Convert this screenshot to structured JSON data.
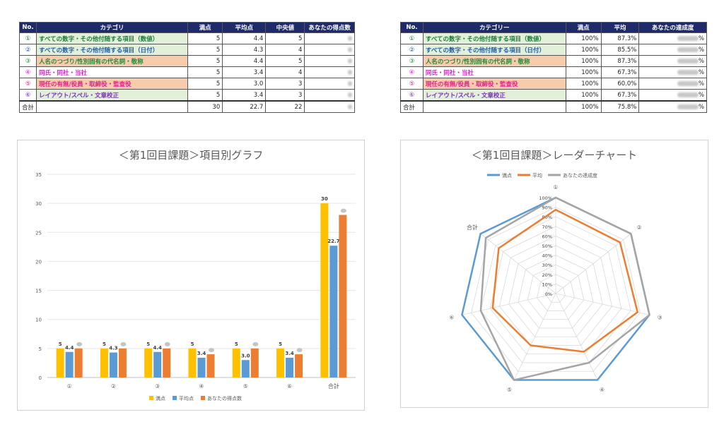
{
  "table1": {
    "headers": [
      "No.",
      "カテゴリ",
      "満点",
      "平均点",
      "中央値",
      "あなたの得点数"
    ],
    "rows": [
      {
        "no": "①",
        "cat": "すべての数字・その他付随する項目（数値）",
        "full": "5",
        "avg": "4.4",
        "median": "5",
        "cat_color": "#1a7d3a",
        "bg": "#e2efd9"
      },
      {
        "no": "②",
        "cat": "すべての数字・その他付随する項目（日付）",
        "full": "5",
        "avg": "4.3",
        "median": "4",
        "cat_color": "#1f5fa8",
        "bg": "#e2efd9"
      },
      {
        "no": "③",
        "cat": "人名のつづり/性別固有の代名詞・敬称",
        "full": "5",
        "avg": "4.4",
        "median": "5",
        "cat_color": "#1a8d3a",
        "bg": "#f8cbad"
      },
      {
        "no": "④",
        "cat": "同氏・同社・当社",
        "full": "5",
        "avg": "3.4",
        "median": "4",
        "cat_color": "#d61ec8",
        "bg": "#ffffff"
      },
      {
        "no": "⑤",
        "cat": "現任の有無/役員・取締役・監査役",
        "full": "5",
        "avg": "3.0",
        "median": "3",
        "cat_color": "#e0218a",
        "bg": "#f8cbad"
      },
      {
        "no": "⑥",
        "cat": "レイアウト/スペル・文章校正",
        "full": "5",
        "avg": "3.4",
        "median": "3",
        "cat_color": "#7b2fbf",
        "bg": "#e2efd9"
      }
    ],
    "total": {
      "label": "合計",
      "full": "30",
      "avg": "22.7",
      "median": "22"
    }
  },
  "table2": {
    "headers": [
      "No.",
      "カテゴリー",
      "満点",
      "平均",
      "あなたの達成度"
    ],
    "rows": [
      {
        "no": "①",
        "cat": "すべての数字・その他付随する項目（数値）",
        "full": "100%",
        "avg": "87.3%",
        "cat_color": "#1a7d3a",
        "bg": "#e2efd9"
      },
      {
        "no": "②",
        "cat": "すべての数字・その他付随する項目（日付）",
        "full": "100%",
        "avg": "85.5%",
        "cat_color": "#1f5fa8",
        "bg": "#e2efd9"
      },
      {
        "no": "③",
        "cat": "人名のつづり/性別固有の代名詞・敬称",
        "full": "100%",
        "avg": "87.3%",
        "cat_color": "#1a8d3a",
        "bg": "#f8cbad"
      },
      {
        "no": "④",
        "cat": "同氏・同社・当社",
        "full": "100%",
        "avg": "67.3%",
        "cat_color": "#d61ec8",
        "bg": "#ffffff"
      },
      {
        "no": "⑤",
        "cat": "現任の有無/役員・取締役・監査役",
        "full": "100%",
        "avg": "60.0%",
        "cat_color": "#e0218a",
        "bg": "#f8cbad"
      },
      {
        "no": "⑥",
        "cat": "レイアウト/スペル・文章校正",
        "full": "100%",
        "avg": "67.3%",
        "cat_color": "#7b2fbf",
        "bg": "#e2efd9"
      }
    ],
    "total": {
      "label": "合計",
      "full": "100%",
      "avg": "75.8%"
    },
    "pct_suffix": "%"
  },
  "chart_data": [
    {
      "type": "bar",
      "title": "＜第1回目課題＞項目別グラフ",
      "categories": [
        "①",
        "②",
        "③",
        "④",
        "⑤",
        "⑥",
        "合計"
      ],
      "series": [
        {
          "name": "満点",
          "color": "#ffc000",
          "values": [
            5,
            5,
            5,
            5,
            5,
            5,
            30
          ],
          "labels": [
            "5",
            "5",
            "5",
            "5",
            "5",
            "5",
            "30"
          ]
        },
        {
          "name": "平均点",
          "color": "#5b9bd5",
          "values": [
            4.4,
            4.3,
            4.4,
            3.4,
            3.0,
            3.4,
            22.7
          ],
          "labels": [
            "4.4",
            "4.3",
            "4.4",
            "3.4",
            "3.0",
            "3.4",
            "22.7"
          ]
        },
        {
          "name": "あなたの得点数",
          "color": "#ed7d31",
          "values": [
            5,
            5,
            5,
            4,
            5,
            4,
            28
          ]
        }
      ],
      "ylim": [
        0,
        35
      ],
      "yticks": [
        0,
        5,
        10,
        15,
        20,
        25,
        30,
        35
      ],
      "grid": true,
      "legend": "bottom"
    },
    {
      "type": "radar",
      "title": "＜第1回目課題＞レーダーチャート",
      "categories": [
        "①",
        "②",
        "③",
        "④",
        "⑤",
        "⑥",
        "合計"
      ],
      "series": [
        {
          "name": "満点",
          "color": "#5b9bd5",
          "values": [
            100,
            100,
            100,
            100,
            100,
            100,
            100
          ]
        },
        {
          "name": "平均",
          "color": "#ed7d31",
          "values": [
            87.3,
            85.5,
            87.3,
            67.3,
            60.0,
            67.3,
            75.8
          ]
        },
        {
          "name": "あなたの達成度",
          "color": "#a5a5a5",
          "values": [
            100,
            100,
            100,
            80,
            100,
            80,
            93
          ]
        }
      ],
      "rlim": [
        0,
        100
      ],
      "rticks": [
        "0%",
        "10%",
        "20%",
        "30%",
        "40%",
        "50%",
        "60%",
        "70%",
        "80%",
        "90%",
        "100%"
      ],
      "legend": "top"
    }
  ]
}
